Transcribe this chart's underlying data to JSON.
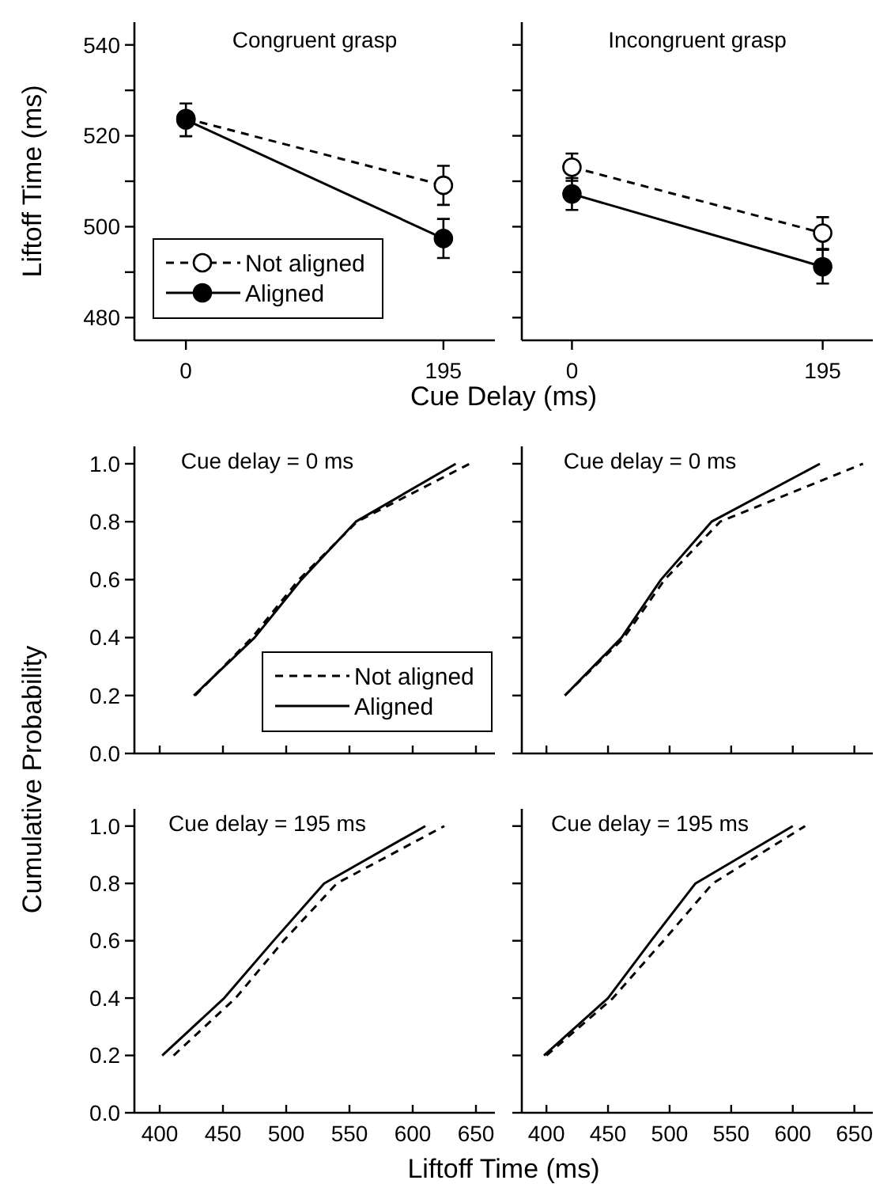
{
  "chart_data": [
    {
      "type": "line",
      "title": "Congruent grasp",
      "xlabel": "Cue Delay (ms)",
      "ylabel": "Liftoff Time (ms)",
      "categories": [
        "0",
        "195"
      ],
      "ylim": [
        475,
        545
      ],
      "yticks": [
        480,
        {
          "value": 490,
          "label": null
        },
        500,
        {
          "value": 510,
          "label": null
        },
        520,
        {
          "value": 530,
          "label": null
        },
        540
      ],
      "marker": "circle",
      "legend": "bottom left",
      "series": [
        {
          "name": "Not aligned",
          "color": "#000000",
          "line_style": "dashed",
          "values": [
            523.8,
            509.1
          ],
          "errors": [
            null,
            4.3
          ]
        },
        {
          "name": "Aligned",
          "color": "#000000",
          "line_style": "solid",
          "values": [
            523.5,
            497.4
          ],
          "errors": [
            3.6,
            4.3
          ]
        }
      ]
    },
    {
      "type": "line",
      "title": "Incongruent grasp",
      "categories": [
        "0",
        "195"
      ],
      "ylim": [
        475,
        545
      ],
      "yticks": [
        480,
        {
          "value": 490,
          "label": null
        },
        500,
        {
          "value": 510,
          "label": null
        },
        520,
        {
          "value": 530,
          "label": null
        },
        540
      ],
      "tick_labels": "x",
      "marker": "circle",
      "series": [
        {
          "color": "#000000",
          "line_style": "dashed",
          "values": [
            513.1,
            498.6
          ],
          "errors": [
            3,
            3.5
          ]
        },
        {
          "color": "#000000",
          "line_style": "solid",
          "values": [
            507.2,
            491.2
          ],
          "errors": [
            3.5,
            3.7
          ]
        }
      ]
    },
    {
      "type": "line",
      "title": "Cue delay = 0 ms",
      "ylabel": "Cumulative Probability",
      "xlim": [
        380,
        665
      ],
      "xticks": [
        400,
        450,
        500,
        550,
        600,
        650
      ],
      "ylim": [
        0,
        1.06
      ],
      "yticks": [
        {
          "value": 0,
          "label": "0.0"
        },
        {
          "value": 0.2,
          "label": "0.2"
        },
        {
          "value": 0.4,
          "label": "0.4"
        },
        {
          "value": 0.6,
          "label": "0.6"
        },
        {
          "value": 0.8,
          "label": "0.8"
        },
        {
          "value": 1,
          "label": "1.0"
        }
      ],
      "tick_labels": "y",
      "legend": "bottom right",
      "series": [
        {
          "name": "Not aligned",
          "color": "#000000",
          "line_style": "dashed",
          "x": [
            428,
            473,
            510,
            556,
            645
          ],
          "values": [
            0.2,
            0.4,
            0.6,
            0.8,
            1.0
          ]
        },
        {
          "name": "Aligned",
          "color": "#000000",
          "line_style": "solid",
          "x": [
            427,
            475,
            512,
            555,
            634
          ],
          "values": [
            0.2,
            0.4,
            0.6,
            0.8,
            1.0
          ]
        }
      ]
    },
    {
      "type": "line",
      "title": "Cue delay = 0 ms",
      "xlim": [
        380,
        665
      ],
      "xticks": [
        400,
        450,
        500,
        550,
        600,
        650
      ],
      "ylim": [
        0,
        1.06
      ],
      "tick_labels": false,
      "yticks": [
        0,
        0.2,
        0.4,
        0.6,
        0.8,
        1
      ],
      "series": [
        {
          "color": "#000000",
          "line_style": "dashed",
          "x": [
            415,
            463,
            496,
            541,
            657
          ],
          "values": [
            0.2,
            0.4,
            0.6,
            0.8,
            1.0
          ]
        },
        {
          "color": "#000000",
          "line_style": "solid",
          "x": [
            415,
            461,
            493,
            534,
            622
          ],
          "values": [
            0.2,
            0.4,
            0.6,
            0.8,
            1.0
          ]
        }
      ]
    },
    {
      "type": "line",
      "title": "Cue delay = 195 ms",
      "xlabel": "Liftoff Time (ms)",
      "xlim": [
        380,
        665
      ],
      "xticks": [
        400,
        450,
        500,
        550,
        600,
        650
      ],
      "ylim": [
        0,
        1.06
      ],
      "yticks": [
        {
          "value": 0,
          "label": "0.0"
        },
        {
          "value": 0.2,
          "label": "0.2"
        },
        {
          "value": 0.4,
          "label": "0.4"
        },
        {
          "value": 0.6,
          "label": "0.6"
        },
        {
          "value": 0.8,
          "label": "0.8"
        },
        {
          "value": 1,
          "label": "1.0"
        }
      ],
      "series": [
        {
          "color": "#000000",
          "line_style": "dashed",
          "x": [
            411,
            460,
            498,
            540,
            625
          ],
          "values": [
            0.2,
            0.4,
            0.6,
            0.8,
            1.0
          ]
        },
        {
          "color": "#000000",
          "line_style": "solid",
          "x": [
            402,
            451,
            490,
            530,
            610
          ],
          "values": [
            0.2,
            0.4,
            0.6,
            0.8,
            1.0
          ]
        }
      ]
    },
    {
      "type": "line",
      "title": "Cue delay = 195 ms",
      "xlim": [
        380,
        665
      ],
      "xticks": [
        400,
        450,
        500,
        550,
        600,
        650
      ],
      "ylim": [
        0,
        1.06
      ],
      "tick_labels": "x",
      "yticks": [
        0,
        0.2,
        0.4,
        0.6,
        0.8,
        1
      ],
      "series": [
        {
          "color": "#000000",
          "line_style": "dashed",
          "x": [
            400,
            454,
            495,
            535,
            610
          ],
          "values": [
            0.2,
            0.4,
            0.6,
            0.8,
            1.0
          ]
        },
        {
          "color": "#000000",
          "line_style": "solid",
          "x": [
            398,
            450,
            485,
            521,
            600
          ],
          "values": [
            0.2,
            0.4,
            0.6,
            0.8,
            1.0
          ]
        }
      ]
    }
  ]
}
